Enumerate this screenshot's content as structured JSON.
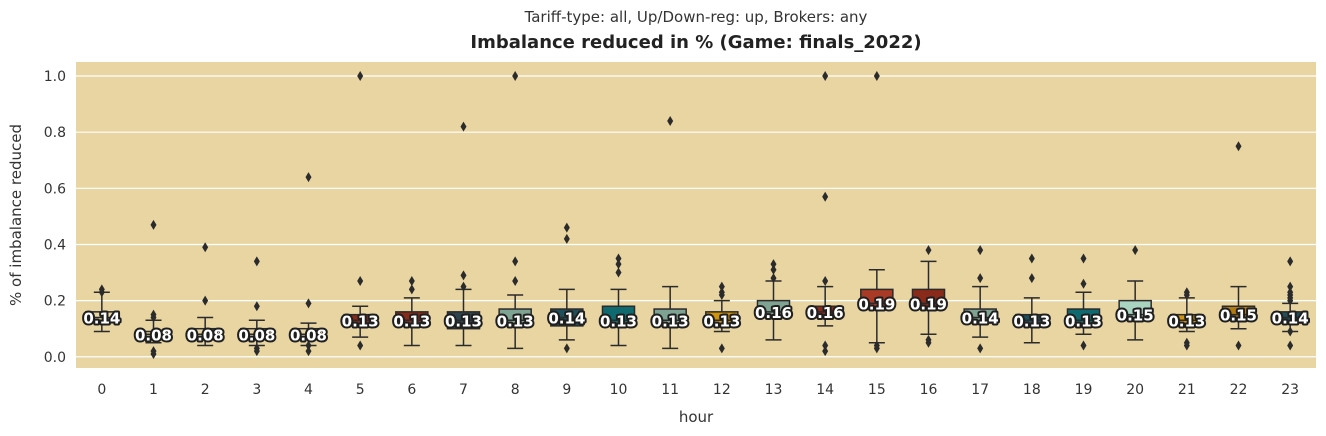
{
  "chart_data": {
    "type": "box",
    "subtitle": "Tariff-type: all, Up/Down-reg: up, Brokers: any",
    "title": "Imbalance reduced in % (Game: finals_2022)",
    "xlabel": "hour",
    "ylabel": "% of imbalance reduced",
    "ylim": [
      -0.04,
      1.05
    ],
    "yticks": [
      0.0,
      0.2,
      0.4,
      0.6,
      0.8,
      1.0
    ],
    "ytick_labels": [
      "0.0",
      "0.2",
      "0.4",
      "0.6",
      "0.8",
      "1.0"
    ],
    "grid": true,
    "background_color": "#e8d5a2",
    "categories": [
      "0",
      "1",
      "2",
      "3",
      "4",
      "5",
      "6",
      "7",
      "8",
      "9",
      "10",
      "11",
      "12",
      "13",
      "14",
      "15",
      "16",
      "17",
      "18",
      "19",
      "20",
      "21",
      "22",
      "23"
    ],
    "boxes": [
      {
        "q1": 0.13,
        "median": 0.14,
        "q3": 0.16,
        "whisker_low": 0.09,
        "whisker_high": 0.23,
        "outliers": [
          0.24,
          0.23
        ],
        "label": "0.14",
        "color": "#e8d5a2"
      },
      {
        "q1": 0.07,
        "median": 0.08,
        "q3": 0.09,
        "whisker_low": 0.05,
        "whisker_high": 0.13,
        "outliers": [
          0.47,
          0.15,
          0.14,
          0.02,
          0.01
        ],
        "label": "0.08",
        "color": "#e8d5a2"
      },
      {
        "q1": 0.07,
        "median": 0.08,
        "q3": 0.1,
        "whisker_low": 0.04,
        "whisker_high": 0.14,
        "outliers": [
          0.39,
          0.2
        ],
        "label": "0.08",
        "color": "#e8d5a2"
      },
      {
        "q1": 0.07,
        "median": 0.08,
        "q3": 0.1,
        "whisker_low": 0.04,
        "whisker_high": 0.13,
        "outliers": [
          0.34,
          0.18,
          0.03,
          0.02
        ],
        "label": "0.08",
        "color": "#e8d5a2"
      },
      {
        "q1": 0.07,
        "median": 0.08,
        "q3": 0.1,
        "whisker_low": 0.04,
        "whisker_high": 0.12,
        "outliers": [
          0.64,
          0.19,
          0.04,
          0.02
        ],
        "label": "0.08",
        "color": "#e8d5a2"
      },
      {
        "q1": 0.11,
        "median": 0.13,
        "q3": 0.15,
        "whisker_low": 0.07,
        "whisker_high": 0.18,
        "outliers": [
          1.0,
          0.27,
          0.04
        ],
        "label": "0.13",
        "color": "#8a2a1a"
      },
      {
        "q1": 0.11,
        "median": 0.13,
        "q3": 0.16,
        "whisker_low": 0.04,
        "whisker_high": 0.21,
        "outliers": [
          0.27,
          0.24
        ],
        "label": "0.13",
        "color": "#8a2a1a"
      },
      {
        "q1": 0.1,
        "median": 0.13,
        "q3": 0.16,
        "whisker_low": 0.04,
        "whisker_high": 0.24,
        "outliers": [
          0.82,
          0.29,
          0.25
        ],
        "label": "0.13",
        "color": "#2d4350"
      },
      {
        "q1": 0.11,
        "median": 0.13,
        "q3": 0.17,
        "whisker_low": 0.03,
        "whisker_high": 0.22,
        "outliers": [
          1.0,
          0.34,
          0.27
        ],
        "label": "0.13",
        "color": "#7fa392"
      },
      {
        "q1": 0.11,
        "median": 0.14,
        "q3": 0.17,
        "whisker_low": 0.06,
        "whisker_high": 0.24,
        "outliers": [
          0.46,
          0.42,
          0.03
        ],
        "label": "0.14",
        "color": "#1f4f5a"
      },
      {
        "q1": 0.11,
        "median": 0.13,
        "q3": 0.18,
        "whisker_low": 0.04,
        "whisker_high": 0.24,
        "outliers": [
          0.35,
          0.33,
          0.3
        ],
        "label": "0.13",
        "color": "#0f6a70"
      },
      {
        "q1": 0.11,
        "median": 0.13,
        "q3": 0.17,
        "whisker_low": 0.03,
        "whisker_high": 0.25,
        "outliers": [
          0.84
        ],
        "label": "0.13",
        "color": "#7fa392"
      },
      {
        "q1": 0.11,
        "median": 0.13,
        "q3": 0.16,
        "whisker_low": 0.09,
        "whisker_high": 0.2,
        "outliers": [
          0.25,
          0.23,
          0.22,
          0.03
        ],
        "label": "0.13",
        "color": "#d0930c"
      },
      {
        "q1": 0.14,
        "median": 0.16,
        "q3": 0.2,
        "whisker_low": 0.06,
        "whisker_high": 0.27,
        "outliers": [
          0.33,
          0.31,
          0.28
        ],
        "label": "0.16",
        "color": "#7fa392"
      },
      {
        "q1": 0.14,
        "median": 0.16,
        "q3": 0.18,
        "whisker_low": 0.11,
        "whisker_high": 0.25,
        "outliers": [
          1.0,
          0.57,
          0.27,
          0.04,
          0.02
        ],
        "label": "0.16",
        "color": "#8a2a1a"
      },
      {
        "q1": 0.17,
        "median": 0.19,
        "q3": 0.24,
        "whisker_low": 0.05,
        "whisker_high": 0.31,
        "outliers": [
          1.0,
          0.04,
          0.03
        ],
        "label": "0.19",
        "color": "#a93a26"
      },
      {
        "q1": 0.17,
        "median": 0.19,
        "q3": 0.24,
        "whisker_low": 0.08,
        "whisker_high": 0.34,
        "outliers": [
          0.38,
          0.06,
          0.05
        ],
        "label": "0.19",
        "color": "#8a2a1a"
      },
      {
        "q1": 0.12,
        "median": 0.14,
        "q3": 0.17,
        "whisker_low": 0.07,
        "whisker_high": 0.25,
        "outliers": [
          0.38,
          0.28,
          0.03
        ],
        "label": "0.14",
        "color": "#7fa392"
      },
      {
        "q1": 0.11,
        "median": 0.13,
        "q3": 0.15,
        "whisker_low": 0.05,
        "whisker_high": 0.21,
        "outliers": [
          0.35,
          0.28
        ],
        "label": "0.13",
        "color": "#1f4f5a"
      },
      {
        "q1": 0.11,
        "median": 0.13,
        "q3": 0.17,
        "whisker_low": 0.08,
        "whisker_high": 0.23,
        "outliers": [
          0.35,
          0.26,
          0.04
        ],
        "label": "0.13",
        "color": "#0f6a70"
      },
      {
        "q1": 0.13,
        "median": 0.15,
        "q3": 0.2,
        "whisker_low": 0.06,
        "whisker_high": 0.27,
        "outliers": [
          0.38
        ],
        "label": "0.15",
        "color": "#a9d4c0"
      },
      {
        "q1": 0.11,
        "median": 0.13,
        "q3": 0.15,
        "whisker_low": 0.09,
        "whisker_high": 0.21,
        "outliers": [
          0.23,
          0.22,
          0.05,
          0.04
        ],
        "label": "0.13",
        "color": "#d0930c"
      },
      {
        "q1": 0.13,
        "median": 0.15,
        "q3": 0.18,
        "whisker_low": 0.1,
        "whisker_high": 0.25,
        "outliers": [
          0.75,
          0.04
        ],
        "label": "0.15",
        "color": "#b07a12"
      },
      {
        "q1": 0.12,
        "median": 0.14,
        "q3": 0.16,
        "whisker_low": 0.09,
        "whisker_high": 0.19,
        "outliers": [
          0.34,
          0.25,
          0.23,
          0.22,
          0.21,
          0.2,
          0.09,
          0.04
        ],
        "label": "0.14",
        "color": "#1f4f5a"
      }
    ]
  }
}
